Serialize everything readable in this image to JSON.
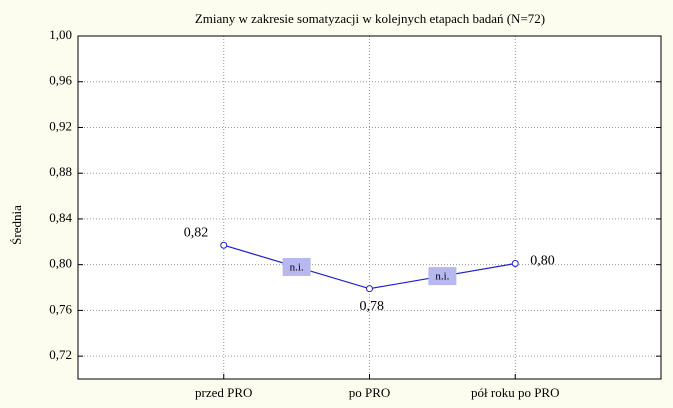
{
  "chart_data": {
    "type": "line",
    "title": "Zmiany w zakresie somatyzacji w kolejnych etapach badań (N=72)",
    "ylabel": "Średnia",
    "categories": [
      "przed PRO",
      "po PRO",
      "pół roku po PRO"
    ],
    "series": [
      {
        "name": "Średnia",
        "color": "#1f1fd0",
        "values": [
          0.817,
          0.779,
          0.801
        ],
        "value_labels": [
          "0,82",
          "0,78",
          "0,80"
        ]
      }
    ],
    "annotations": [
      "n.i.",
      "n.i."
    ],
    "ylim": [
      0.7,
      1.0
    ],
    "yticks": [
      {
        "value": 0.72,
        "label": "0,72"
      },
      {
        "value": 0.76,
        "label": "0,76"
      },
      {
        "value": 0.8,
        "label": "0,80"
      },
      {
        "value": 0.84,
        "label": "0,84"
      },
      {
        "value": 0.88,
        "label": "0,88"
      },
      {
        "value": 0.92,
        "label": "0,92"
      },
      {
        "value": 0.96,
        "label": "0,96"
      },
      {
        "value": 1.0,
        "label": "1,00"
      }
    ],
    "grid": true
  }
}
